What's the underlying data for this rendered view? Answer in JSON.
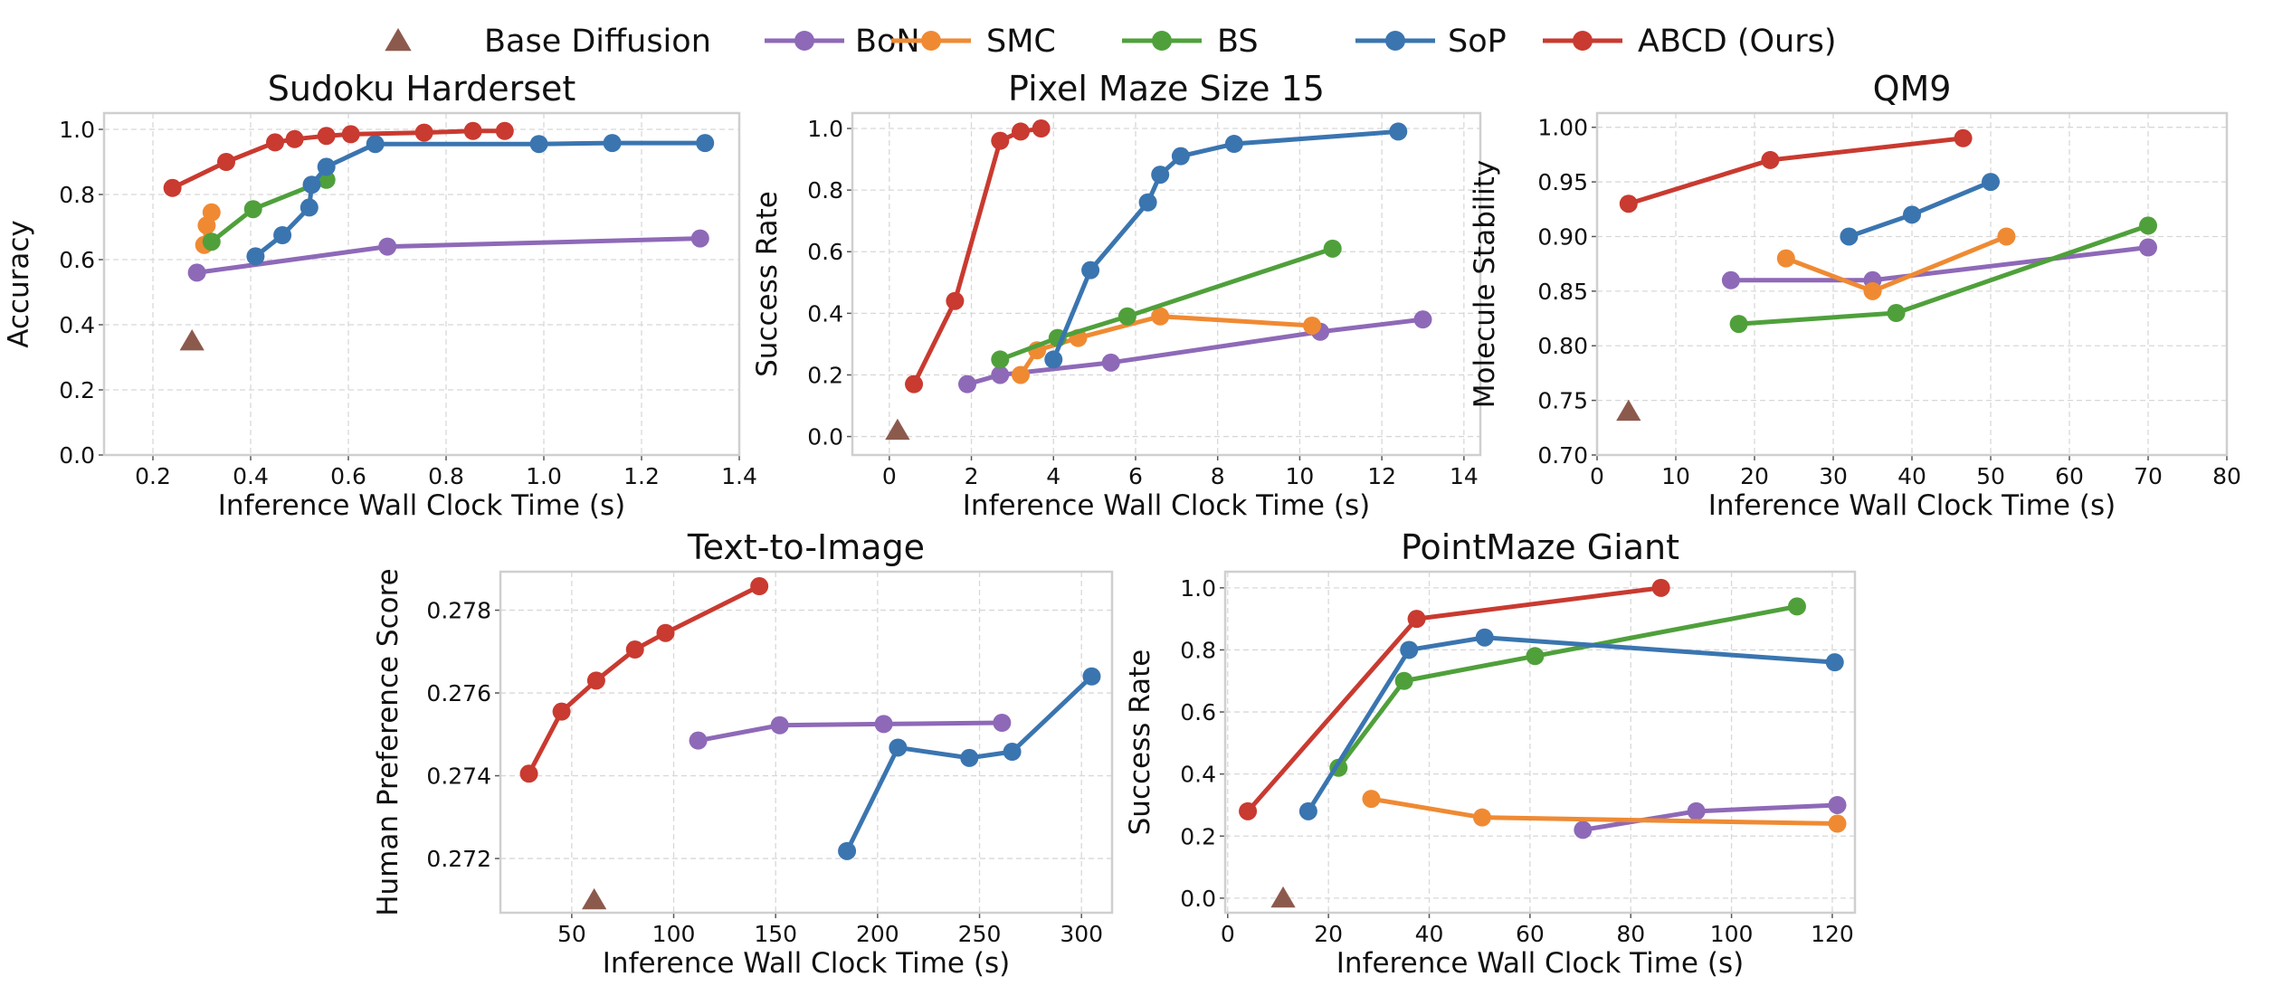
{
  "legend": [
    {
      "name": "Base Diffusion",
      "color": "#8c5a4d",
      "marker": "triangle"
    },
    {
      "name": "BoN",
      "color": "#8e69b8",
      "marker": "circle"
    },
    {
      "name": "SMC",
      "color": "#ef8a33",
      "marker": "circle"
    },
    {
      "name": "BS",
      "color": "#4fa03b",
      "marker": "circle"
    },
    {
      "name": "SoP",
      "color": "#3a75b0",
      "marker": "circle"
    },
    {
      "name": "ABCD (Ours)",
      "color": "#c93a30",
      "marker": "circle"
    }
  ],
  "legend_placement": "top",
  "chart_data": [
    {
      "type": "line",
      "title": "Sudoku Harderset",
      "xlabel": "Inference Wall Clock Time (s)",
      "ylabel": "Accuracy",
      "xlim": [
        0.1,
        1.4
      ],
      "ylim": [
        0.0,
        1.05
      ],
      "grid": true,
      "xticks": [
        "0.2",
        "0.4",
        "0.6",
        "0.8",
        "1.0",
        "1.2",
        "1.4"
      ],
      "yticks": [
        "0.0",
        "0.2",
        "0.4",
        "0.6",
        "0.8",
        "1.0"
      ],
      "series": [
        {
          "name": "Base Diffusion",
          "points": [
            [
              0.28,
              0.35
            ]
          ]
        },
        {
          "name": "BoN",
          "points": [
            [
              0.29,
              0.56
            ],
            [
              0.68,
              0.64
            ],
            [
              1.32,
              0.665
            ]
          ]
        },
        {
          "name": "SMC",
          "points": [
            [
              0.305,
              0.645
            ],
            [
              0.31,
              0.705
            ],
            [
              0.32,
              0.745
            ]
          ]
        },
        {
          "name": "BS",
          "points": [
            [
              0.32,
              0.655
            ],
            [
              0.405,
              0.755
            ],
            [
              0.555,
              0.845
            ]
          ]
        },
        {
          "name": "SoP",
          "points": [
            [
              0.41,
              0.61
            ],
            [
              0.465,
              0.675
            ],
            [
              0.52,
              0.76
            ],
            [
              0.525,
              0.83
            ],
            [
              0.555,
              0.885
            ],
            [
              0.655,
              0.955
            ],
            [
              0.99,
              0.955
            ],
            [
              1.14,
              0.958
            ],
            [
              1.33,
              0.958
            ]
          ]
        },
        {
          "name": "ABCD (Ours)",
          "points": [
            [
              0.24,
              0.82
            ],
            [
              0.35,
              0.9
            ],
            [
              0.45,
              0.96
            ],
            [
              0.49,
              0.97
            ],
            [
              0.555,
              0.98
            ],
            [
              0.605,
              0.985
            ],
            [
              0.755,
              0.99
            ],
            [
              0.855,
              0.995
            ],
            [
              0.92,
              0.995
            ]
          ]
        }
      ]
    },
    {
      "type": "line",
      "title": "Pixel Maze Size 15",
      "xlabel": "Inference Wall Clock Time (s)",
      "ylabel": "Success Rate",
      "xlim": [
        -0.9,
        14.4
      ],
      "ylim": [
        -0.06,
        1.05
      ],
      "grid": true,
      "xticks": [
        "0",
        "2",
        "4",
        "6",
        "8",
        "10",
        "12",
        "14"
      ],
      "yticks": [
        "0.0",
        "0.2",
        "0.4",
        "0.6",
        "0.8",
        "1.0"
      ],
      "series": [
        {
          "name": "Base Diffusion",
          "points": [
            [
              0.2,
              0.02
            ]
          ]
        },
        {
          "name": "BoN",
          "points": [
            [
              1.9,
              0.17
            ],
            [
              2.7,
              0.2
            ],
            [
              5.4,
              0.24
            ],
            [
              10.5,
              0.34
            ],
            [
              13.0,
              0.38
            ]
          ]
        },
        {
          "name": "SMC",
          "points": [
            [
              3.2,
              0.2
            ],
            [
              3.6,
              0.28
            ],
            [
              4.6,
              0.32
            ],
            [
              6.6,
              0.39
            ],
            [
              10.3,
              0.36
            ]
          ]
        },
        {
          "name": "BS",
          "points": [
            [
              2.7,
              0.25
            ],
            [
              4.1,
              0.32
            ],
            [
              5.8,
              0.39
            ],
            [
              10.8,
              0.61
            ]
          ]
        },
        {
          "name": "SoP",
          "points": [
            [
              4.0,
              0.25
            ],
            [
              4.9,
              0.54
            ],
            [
              6.3,
              0.76
            ],
            [
              6.6,
              0.85
            ],
            [
              7.1,
              0.91
            ],
            [
              8.4,
              0.95
            ],
            [
              12.4,
              0.99
            ]
          ]
        },
        {
          "name": "ABCD (Ours)",
          "points": [
            [
              0.6,
              0.17
            ],
            [
              1.6,
              0.44
            ],
            [
              2.7,
              0.96
            ],
            [
              3.2,
              0.99
            ],
            [
              3.7,
              1.0
            ]
          ]
        }
      ]
    },
    {
      "type": "line",
      "title": "QM9",
      "xlabel": "Inference Wall Clock Time (s)",
      "ylabel": "Molecule Stability",
      "xlim": [
        0,
        80
      ],
      "ylim": [
        0.7,
        1.013
      ],
      "grid": true,
      "xticks": [
        "0",
        "10",
        "20",
        "30",
        "40",
        "50",
        "60",
        "70",
        "80"
      ],
      "yticks": [
        "0.70",
        "0.75",
        "0.80",
        "0.85",
        "0.90",
        "0.95",
        "1.00"
      ],
      "series": [
        {
          "name": "Base Diffusion",
          "points": [
            [
              4,
              0.74
            ]
          ]
        },
        {
          "name": "BoN",
          "points": [
            [
              17,
              0.86
            ],
            [
              35,
              0.86
            ],
            [
              70,
              0.89
            ]
          ]
        },
        {
          "name": "SMC",
          "points": [
            [
              24,
              0.88
            ],
            [
              35,
              0.85
            ],
            [
              52,
              0.9
            ]
          ]
        },
        {
          "name": "BS",
          "points": [
            [
              18,
              0.82
            ],
            [
              38,
              0.83
            ],
            [
              70,
              0.91
            ]
          ]
        },
        {
          "name": "SoP",
          "points": [
            [
              32,
              0.9
            ],
            [
              40,
              0.92
            ],
            [
              50,
              0.95
            ]
          ]
        },
        {
          "name": "ABCD (Ours)",
          "points": [
            [
              4,
              0.93
            ],
            [
              22,
              0.97
            ],
            [
              46.5,
              0.99
            ]
          ]
        }
      ]
    },
    {
      "type": "line",
      "title": "Text-to-Image",
      "xlabel": "Inference Wall Clock Time (s)",
      "ylabel": "Human Preference Score",
      "xlim": [
        15,
        315
      ],
      "ylim": [
        0.27069,
        0.27893
      ],
      "grid": true,
      "xticks": [
        "50",
        "100",
        "150",
        "200",
        "250",
        "300"
      ],
      "yticks": [
        "0.272",
        "0.274",
        "0.276",
        "0.278"
      ],
      "series": [
        {
          "name": "Base Diffusion",
          "points": [
            [
              61,
              0.271
            ]
          ]
        },
        {
          "name": "BoN",
          "points": [
            [
              112,
              0.27485
            ],
            [
              152,
              0.27522
            ],
            [
              203,
              0.27525
            ],
            [
              261,
              0.27528
            ]
          ]
        },
        {
          "name": "SoP",
          "points": [
            [
              185,
              0.27218
            ],
            [
              210,
              0.27468
            ],
            [
              245,
              0.27443
            ],
            [
              266,
              0.27458
            ],
            [
              305,
              0.2764
            ]
          ]
        },
        {
          "name": "ABCD (Ours)",
          "points": [
            [
              29,
              0.27405
            ],
            [
              45,
              0.27555
            ],
            [
              62,
              0.2763
            ],
            [
              81,
              0.27705
            ],
            [
              96,
              0.27745
            ],
            [
              142,
              0.27858
            ]
          ]
        }
      ]
    },
    {
      "type": "line",
      "title": "PointMaze Giant",
      "xlabel": "Inference Wall Clock Time (s)",
      "ylabel": "Success Rate",
      "xlim": [
        -0.5,
        124.5
      ],
      "ylim": [
        -0.047,
        1.052
      ],
      "grid": true,
      "xticks": [
        "0",
        "20",
        "40",
        "60",
        "80",
        "100",
        "120"
      ],
      "yticks": [
        "0.0",
        "0.2",
        "0.4",
        "0.6",
        "0.8",
        "1.0"
      ],
      "series": [
        {
          "name": "Base Diffusion",
          "points": [
            [
              11,
              0.0
            ]
          ]
        },
        {
          "name": "BoN",
          "points": [
            [
              70.5,
              0.22
            ],
            [
              93,
              0.28
            ],
            [
              121,
              0.3
            ]
          ]
        },
        {
          "name": "SMC",
          "points": [
            [
              28.5,
              0.32
            ],
            [
              50.5,
              0.26
            ],
            [
              121,
              0.24
            ]
          ]
        },
        {
          "name": "BS",
          "points": [
            [
              22,
              0.42
            ],
            [
              35,
              0.7
            ],
            [
              61,
              0.78
            ],
            [
              113,
              0.94
            ]
          ]
        },
        {
          "name": "SoP",
          "points": [
            [
              16,
              0.28
            ],
            [
              36,
              0.8
            ],
            [
              51,
              0.84
            ],
            [
              120.5,
              0.76
            ]
          ]
        },
        {
          "name": "ABCD (Ours)",
          "points": [
            [
              4,
              0.28
            ],
            [
              37.5,
              0.9
            ],
            [
              86,
              1.0
            ]
          ]
        }
      ]
    }
  ]
}
